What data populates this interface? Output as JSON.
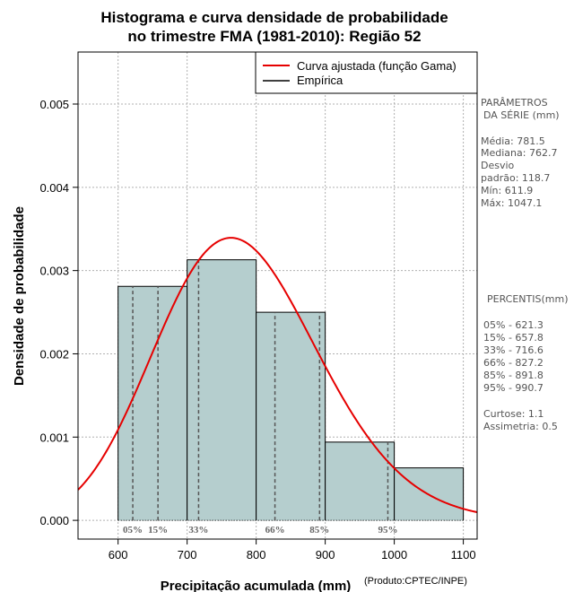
{
  "chart_data": {
    "type": "bar",
    "title_line1": "Histograma e curva densidade de probabilidade",
    "title_line2": "no trimestre FMA (1981-2010): Região 52",
    "xlabel": "Precipitação acumulada (mm)",
    "ylabel": "Densidade de probabilidade",
    "credit": "(Produto:CPTEC/INPE)",
    "xlim": [
      542,
      1120
    ],
    "ylim": [
      -0.000225,
      0.005625
    ],
    "x_ticks": [
      600,
      700,
      800,
      900,
      1000,
      1100
    ],
    "x_tick_labels": [
      "600",
      "700",
      "800",
      "900",
      "1000",
      "1100"
    ],
    "y_ticks": [
      0,
      0.001,
      0.002,
      0.003,
      0.004,
      0.005
    ],
    "y_tick_labels": [
      "0.000",
      "0.001",
      "0.002",
      "0.003",
      "0.004",
      "0.005"
    ],
    "grid": true,
    "bins": [
      {
        "x0": 600,
        "x1": 700,
        "density": 0.00281
      },
      {
        "x0": 700,
        "x1": 800,
        "density": 0.00313
      },
      {
        "x0": 800,
        "x1": 900,
        "density": 0.0025
      },
      {
        "x0": 900,
        "x1": 1000,
        "density": 0.00094
      },
      {
        "x0": 1000,
        "x1": 1100,
        "density": 0.00063
      }
    ],
    "gamma_fit": {
      "mean": 781.5,
      "sd": 118.7
    },
    "percentiles": [
      {
        "label": "05%",
        "value": 621.3
      },
      {
        "label": "15%",
        "value": 657.8
      },
      {
        "label": "33%",
        "value": 716.6
      },
      {
        "label": "66%",
        "value": 827.2
      },
      {
        "label": "85%",
        "value": 891.8
      },
      {
        "label": "95%",
        "value": 990.7
      }
    ],
    "legend": {
      "position": "top-right",
      "fitted": "Curva ajustada (função Gama)",
      "empirical": "Empírica"
    },
    "colors": {
      "bar_fill": "#b5cece",
      "curve": "#e60000",
      "grid": "#b0b0b0",
      "percentile_line": "#555555"
    }
  },
  "side_panel": {
    "params": {
      "heading1": "PARÂMETROS",
      "heading2": "DA SÉRIE (mm)",
      "lines": [
        "Média:  781.5",
        "Mediana:  762.7",
        "Desvio",
        "padrão:  118.7",
        "Mín:  611.9",
        "Máx:  1047.1"
      ]
    },
    "percentis": {
      "heading": "PERCENTIS(mm)",
      "lines": [
        "05% -  621.3",
        "15% -  657.8",
        "33% -  716.6",
        "66% -  827.2",
        "85% -  891.8",
        "95% -  990.7"
      ]
    },
    "stats": {
      "lines": [
        "Curtose:  1.1",
        "Assimetria:  0.5"
      ]
    }
  }
}
